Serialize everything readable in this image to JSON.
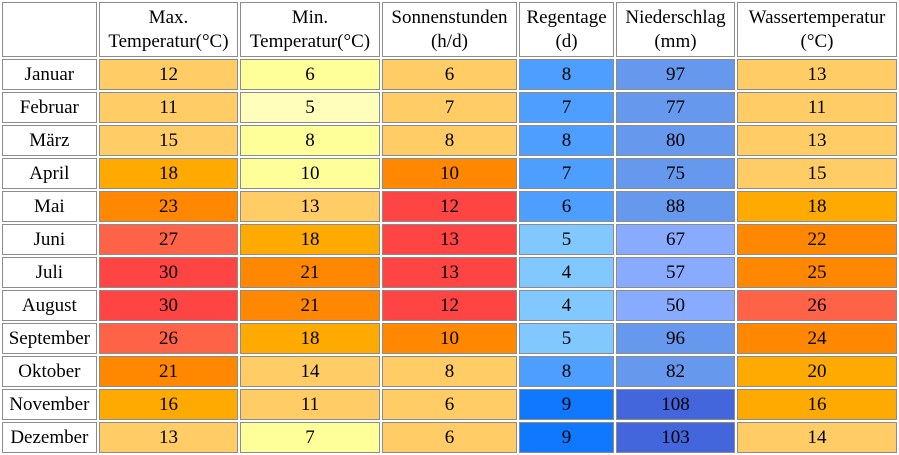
{
  "headers": [
    {
      "line1": "Max.",
      "line2": "Temperatur(°C)"
    },
    {
      "line1": "Min.",
      "line2": "Temperatur(°C)"
    },
    {
      "line1": "Sonnenstunden",
      "line2": "(h/d)"
    },
    {
      "line1": "Regentage",
      "line2": "(d)"
    },
    {
      "line1": "Niederschlag",
      "line2": "(mm)"
    },
    {
      "line1": "Wassertemperatur",
      "line2": "(°C)"
    }
  ],
  "rows": [
    {
      "month": "Januar",
      "values": [
        "12",
        "6",
        "6",
        "8",
        "97",
        "13"
      ],
      "colors": [
        "#ffcc66",
        "#ffff99",
        "#ffcc66",
        "#4d9eff",
        "#6699ee",
        "#ffcc66"
      ]
    },
    {
      "month": "Februar",
      "values": [
        "11",
        "5",
        "7",
        "7",
        "77",
        "11"
      ],
      "colors": [
        "#ffcc66",
        "#ffffbb",
        "#ffcc66",
        "#4d9eff",
        "#6699ee",
        "#ffcc66"
      ]
    },
    {
      "month": "März",
      "values": [
        "15",
        "8",
        "8",
        "8",
        "80",
        "13"
      ],
      "colors": [
        "#ffcc66",
        "#ffff99",
        "#ffcc66",
        "#4d9eff",
        "#6699ee",
        "#ffcc66"
      ]
    },
    {
      "month": "April",
      "values": [
        "18",
        "10",
        "10",
        "7",
        "75",
        "15"
      ],
      "colors": [
        "#ffaa00",
        "#ffff99",
        "#ff8800",
        "#4d9eff",
        "#6699ee",
        "#ffcc66"
      ]
    },
    {
      "month": "Mai",
      "values": [
        "23",
        "13",
        "12",
        "6",
        "88",
        "18"
      ],
      "colors": [
        "#ff8800",
        "#ffcc66",
        "#ff4444",
        "#4d9eff",
        "#6699ee",
        "#ffaa00"
      ]
    },
    {
      "month": "Juni",
      "values": [
        "27",
        "18",
        "13",
        "5",
        "67",
        "22"
      ],
      "colors": [
        "#ff6347",
        "#ffaa00",
        "#ff4444",
        "#80c8ff",
        "#88aaff",
        "#ff8800"
      ]
    },
    {
      "month": "Juli",
      "values": [
        "30",
        "21",
        "13",
        "4",
        "57",
        "25"
      ],
      "colors": [
        "#ff4444",
        "#ff8800",
        "#ff4444",
        "#80c8ff",
        "#88aaff",
        "#ff8800"
      ]
    },
    {
      "month": "August",
      "values": [
        "30",
        "21",
        "12",
        "4",
        "50",
        "26"
      ],
      "colors": [
        "#ff4444",
        "#ff8800",
        "#ff4444",
        "#80c8ff",
        "#88aaff",
        "#ff6347"
      ]
    },
    {
      "month": "September",
      "values": [
        "26",
        "18",
        "10",
        "5",
        "96",
        "24"
      ],
      "colors": [
        "#ff6347",
        "#ffaa00",
        "#ff8800",
        "#80c8ff",
        "#6699ee",
        "#ff8800"
      ]
    },
    {
      "month": "Oktober",
      "values": [
        "21",
        "14",
        "8",
        "8",
        "82",
        "20"
      ],
      "colors": [
        "#ff8800",
        "#ffcc66",
        "#ffcc66",
        "#4d9eff",
        "#6699ee",
        "#ffaa00"
      ]
    },
    {
      "month": "November",
      "values": [
        "16",
        "11",
        "6",
        "9",
        "108",
        "16"
      ],
      "colors": [
        "#ffaa00",
        "#ffcc66",
        "#ffcc66",
        "#0f78ff",
        "#4466dd",
        "#ffaa00"
      ]
    },
    {
      "month": "Dezember",
      "values": [
        "13",
        "7",
        "6",
        "9",
        "103",
        "14"
      ],
      "colors": [
        "#ffcc66",
        "#ffff99",
        "#ffcc66",
        "#0f78ff",
        "#4466dd",
        "#ffcc66"
      ]
    }
  ]
}
